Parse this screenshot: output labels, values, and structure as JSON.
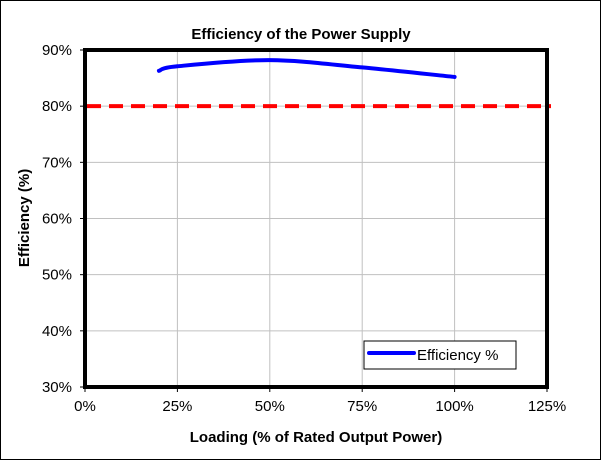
{
  "chart_data": {
    "type": "line",
    "title": "Efficiency of the Power Supply",
    "xlabel": "Loading (% of Rated Output Power)",
    "ylabel": "Efficiency (%)",
    "xlim": [
      0,
      125
    ],
    "ylim": [
      30,
      90
    ],
    "xticks": [
      "0%",
      "25%",
      "50%",
      "75%",
      "100%",
      "125%"
    ],
    "yticks": [
      "30%",
      "40%",
      "50%",
      "60%",
      "70%",
      "80%",
      "90%"
    ],
    "grid": true,
    "legend_placement": "bottom-right",
    "series": [
      {
        "name": "Efficiency %",
        "color": "#0000ff",
        "x": [
          20,
          25,
          50,
          75,
          100
        ],
        "y": [
          86.3,
          87.1,
          88.2,
          86.9,
          85.2
        ]
      }
    ],
    "reference_line": {
      "y": 80,
      "color": "#ff0000",
      "style": "dashed"
    }
  }
}
